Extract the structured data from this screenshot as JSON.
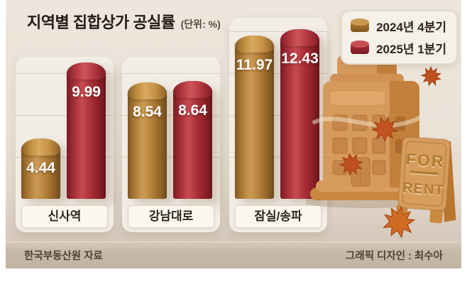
{
  "title": {
    "text": "지역별 집합상가 공실률",
    "unit": "(단위: %)"
  },
  "chart_data": {
    "type": "bar",
    "title": "지역별 집합상가 공실률",
    "unit": "%",
    "categories": [
      "신사역",
      "강남대로",
      "잠실/송파"
    ],
    "series": [
      {
        "name": "2024년 4분기",
        "color": "#b5813c",
        "values": [
          4.44,
          8.54,
          11.97
        ]
      },
      {
        "name": "2025년 1분기",
        "color": "#b23038",
        "values": [
          9.99,
          8.64,
          12.43
        ]
      }
    ],
    "ylim": [
      0,
      13
    ],
    "legend_position": "top-right",
    "grid": "faint-horizontal-lines"
  },
  "illustration": {
    "building": "clay-building-icon",
    "sign_line1": "FOR",
    "sign_line2": "RENT",
    "leaves": "maple-leaf-icons"
  },
  "footer": {
    "source": "한국부동산원 자료",
    "credit": "그래픽 디자인 : 최수아"
  },
  "colors": {
    "brown_bar": "#b5813c",
    "red_bar": "#b23038",
    "background_top": "#ede6dc",
    "background_bottom": "#cfc3b5",
    "panel": "#f2ede5",
    "footer_bar": "#c7b9a8",
    "building_tan": "#d69a5b"
  }
}
